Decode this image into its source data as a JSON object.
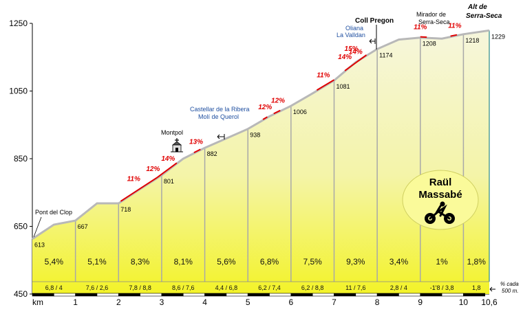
{
  "chart_data": {
    "type": "area",
    "title": "Alt de Serra-Seca",
    "xlabel": "km",
    "xlim": [
      0,
      10.6
    ],
    "ylim": [
      450,
      1250
    ],
    "y_ticks": [
      "1250",
      "1050",
      "850",
      "650",
      "450"
    ],
    "x_ticks": [
      "1",
      "2",
      "3",
      "4",
      "5",
      "6",
      "7",
      "8",
      "9",
      "10",
      "10,6"
    ],
    "profile": [
      [
        0,
        613
      ],
      [
        0.5,
        655
      ],
      [
        1,
        667
      ],
      [
        1.5,
        718
      ],
      [
        2,
        718
      ],
      [
        2.5,
        760
      ],
      [
        3,
        801
      ],
      [
        3.5,
        850
      ],
      [
        4,
        882
      ],
      [
        4.5,
        910
      ],
      [
        5,
        938
      ],
      [
        5.5,
        975
      ],
      [
        6,
        1006
      ],
      [
        6.5,
        1043
      ],
      [
        7,
        1081
      ],
      [
        7.5,
        1135
      ],
      [
        8,
        1174
      ],
      [
        8.5,
        1202
      ],
      [
        9,
        1208
      ],
      [
        9.5,
        1205
      ],
      [
        10,
        1218
      ],
      [
        10.6,
        1229
      ]
    ],
    "km_labels": [
      {
        "km": 0,
        "text": "613"
      },
      {
        "km": 1,
        "text": "667"
      },
      {
        "km": 2,
        "text": "718"
      },
      {
        "km": 3,
        "text": "801"
      },
      {
        "km": 4,
        "text": "882"
      },
      {
        "km": 5,
        "text": "938"
      },
      {
        "km": 6,
        "text": "1006"
      },
      {
        "km": 7,
        "text": "1081"
      },
      {
        "km": 8,
        "text": "1174"
      },
      {
        "km": 9,
        "text": "1208"
      },
      {
        "km": 10,
        "text": "1218"
      },
      {
        "km": 10.6,
        "text": "1229"
      }
    ],
    "segments": [
      {
        "avg": "5,4%",
        "detail": "6,8  /  4"
      },
      {
        "avg": "5,1%",
        "detail": "7,6  /  2,6"
      },
      {
        "avg": "8,3%",
        "detail": "7,8  /  8,8"
      },
      {
        "avg": "8,1%",
        "detail": "8,6  /  7,6"
      },
      {
        "avg": "5,6%",
        "detail": "4,4  /  6,8"
      },
      {
        "avg": "6,8%",
        "detail": "6,2  /  7,4"
      },
      {
        "avg": "7,5%",
        "detail": "6,2  /  8,8"
      },
      {
        "avg": "9,3%",
        "detail": "11  /  7,6"
      },
      {
        "avg": "3,4%",
        "detail": "2,8  /  4"
      },
      {
        "avg": "1%",
        "detail": "-1'8  /  3,8"
      },
      {
        "avg": "1,8%",
        "detail": "1,8"
      }
    ],
    "steep_labels": [
      {
        "text": "11%",
        "km": 2.35
      },
      {
        "text": "12%",
        "km": 2.8
      },
      {
        "text": "14%",
        "km": 3.15
      },
      {
        "text": "13%",
        "km": 3.8
      },
      {
        "text": "12%",
        "km": 5.4
      },
      {
        "text": "12%",
        "km": 5.7
      },
      {
        "text": "11%",
        "km": 6.75
      },
      {
        "text": "14%",
        "km": 7.25
      },
      {
        "text": "15%",
        "km": 7.4
      },
      {
        "text": "14%",
        "km": 7.5
      },
      {
        "text": "11%",
        "km": 9.0
      },
      {
        "text": "11%",
        "km": 9.8
      }
    ],
    "places": [
      {
        "text": "Pont del Clop",
        "km": 0.1
      },
      {
        "text": "Montpol",
        "km": 3.3
      },
      {
        "text": "Castellar de la Ribera",
        "km": 5.0
      },
      {
        "text": "Molí de Querol",
        "km": 5.0
      },
      {
        "text": "Oliana",
        "km": 7.8
      },
      {
        "text": "La Valldan",
        "km": 7.8
      },
      {
        "text": "Coll Pregon",
        "km": 8.1
      },
      {
        "text": "Mirador de",
        "km": 9.3
      },
      {
        "text": "Serra-Seca",
        "km": 9.3
      }
    ],
    "summit_line1": "Alt de",
    "summit_line2": "Serra-Seca",
    "unit_note1": "% cada",
    "unit_note2": "500 m.",
    "rider_first": "Raül",
    "rider_last": "Massabé",
    "colors": {
      "fill_top": "#f4f4ce",
      "fill_bottom": "#f3f31a",
      "gridline": "#a8a8a8",
      "steep": "#e00000",
      "link_text": "#1f4fa0",
      "badge": "#fafa9a"
    }
  }
}
